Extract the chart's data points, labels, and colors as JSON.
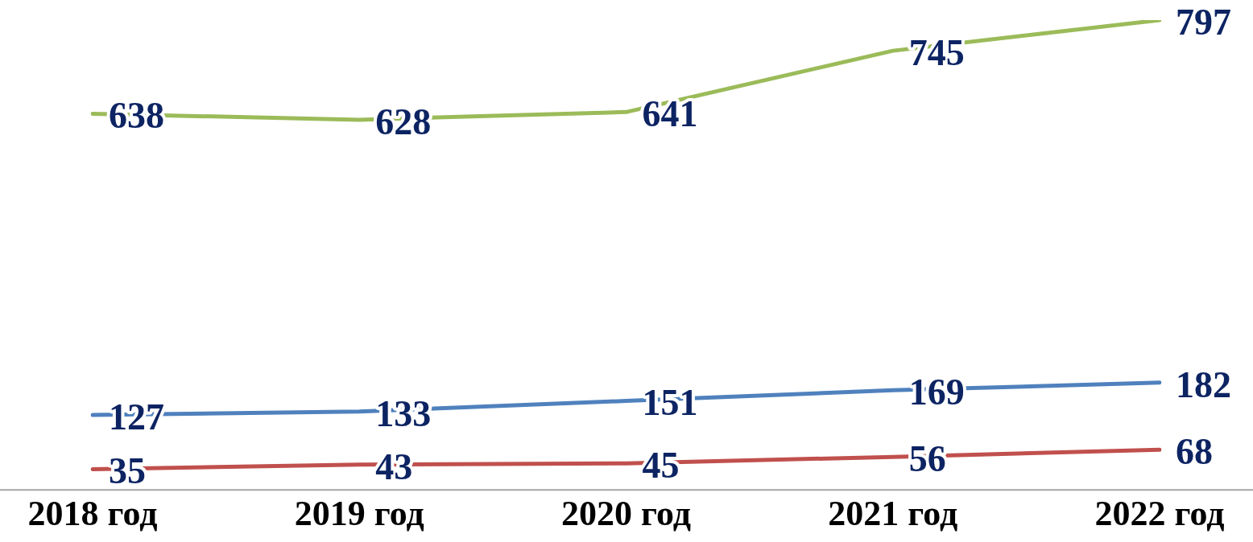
{
  "chart_data": {
    "type": "line",
    "categories": [
      "2018 год",
      "2019 год",
      "2020 год",
      "2021 год",
      "2022 год"
    ],
    "series": [
      {
        "color": "#9bbb59",
        "values": [
          638,
          628,
          641,
          745,
          797
        ]
      },
      {
        "color": "#4f81bd",
        "values": [
          127,
          133,
          151,
          169,
          182
        ]
      },
      {
        "color": "#c0504d",
        "values": [
          35,
          43,
          45,
          56,
          68
        ]
      }
    ],
    "tick_labels": "x",
    "data_labels": true,
    "grid": false,
    "legend": false,
    "marker": "none",
    "line_style": "solid"
  }
}
